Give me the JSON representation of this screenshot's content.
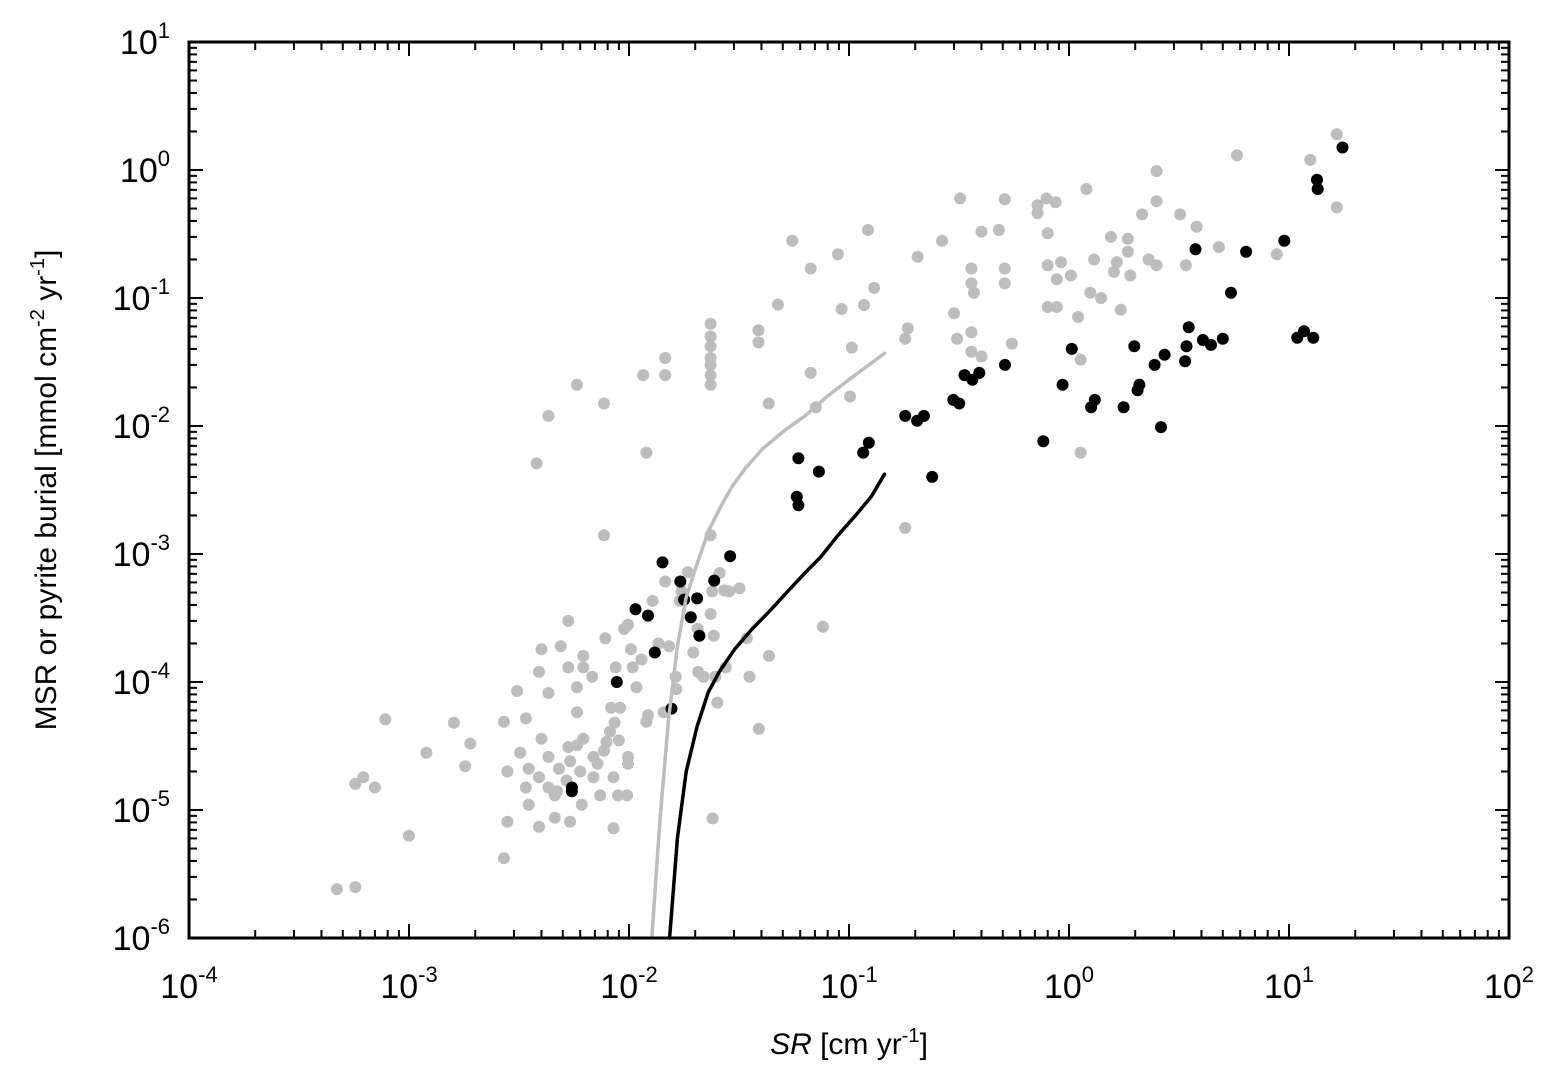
{
  "chart_data": {
    "type": "scatter",
    "title": "",
    "xlabel_italic": "SR",
    "xlabel_rest": " [cm yr",
    "xlabel_sup": "-1",
    "xlabel_end": "]",
    "ylabel_part1": "MSR or pyrite burial [mmol cm",
    "ylabel_sup1": "-2",
    "ylabel_part2": " yr",
    "ylabel_sup2": "-1",
    "ylabel_end": "]",
    "x_scale": "log",
    "y_scale": "log",
    "xlim": [
      0.0001,
      100
    ],
    "ylim": [
      1e-06,
      10
    ],
    "x_ticks": [
      {
        "base": "10",
        "exp": "-4"
      },
      {
        "base": "10",
        "exp": "-3"
      },
      {
        "base": "10",
        "exp": "-2"
      },
      {
        "base": "10",
        "exp": "-1"
      },
      {
        "base": "10",
        "exp": "0"
      },
      {
        "base": "10",
        "exp": "1"
      },
      {
        "base": "10",
        "exp": "2"
      }
    ],
    "y_ticks": [
      {
        "base": "10",
        "exp": "-6"
      },
      {
        "base": "10",
        "exp": "-5"
      },
      {
        "base": "10",
        "exp": "-4"
      },
      {
        "base": "10",
        "exp": "-3"
      },
      {
        "base": "10",
        "exp": "-2"
      },
      {
        "base": "10",
        "exp": "-1"
      },
      {
        "base": "10",
        "exp": "0"
      },
      {
        "base": "10",
        "exp": "1"
      }
    ],
    "grid": false,
    "series": [
      {
        "kind": "points",
        "color": "#bdbdbd",
        "points": [
          [
            0.00047,
            2.4e-06
          ],
          [
            0.00057,
            2.5e-06
          ],
          [
            0.00057,
            1.6e-05
          ],
          [
            0.00062,
            1.8e-05
          ],
          [
            0.0007,
            1.5e-05
          ],
          [
            0.00078,
            5.1e-05
          ],
          [
            0.001,
            6.3e-06
          ],
          [
            0.0012,
            2.8e-05
          ],
          [
            0.0016,
            4.8e-05
          ],
          [
            0.0018,
            2.2e-05
          ],
          [
            0.0019,
            3.3e-05
          ],
          [
            0.0027,
            4.2e-06
          ],
          [
            0.0028,
            8.1e-06
          ],
          [
            0.0028,
            2e-05
          ],
          [
            0.0027,
            4.9e-05
          ],
          [
            0.0031,
            8.5e-05
          ],
          [
            0.0032,
            2.8e-05
          ],
          [
            0.0034,
            5.2e-05
          ],
          [
            0.0035,
            2.1e-05
          ],
          [
            0.0034,
            1.5e-05
          ],
          [
            0.0035,
            1.1e-05
          ],
          [
            0.0039,
            7.4e-06
          ],
          [
            0.0039,
            1.8e-05
          ],
          [
            0.004,
            3.6e-05
          ],
          [
            0.0039,
            0.00012
          ],
          [
            0.004,
            0.00018
          ],
          [
            0.0043,
            8.2e-05
          ],
          [
            0.0043,
            2.6e-05
          ],
          [
            0.0043,
            1.5e-05
          ],
          [
            0.0046,
            1.3e-05
          ],
          [
            0.0046,
            8.7e-06
          ],
          [
            0.0047,
            1.4e-05
          ],
          [
            0.0048,
            2.1e-05
          ],
          [
            0.0049,
            0.00019
          ],
          [
            0.0052,
            1.7e-05
          ],
          [
            0.0053,
            3.1e-05
          ],
          [
            0.0054,
            2.4e-05
          ],
          [
            0.0053,
            0.00013
          ],
          [
            0.0053,
            0.0003
          ],
          [
            0.0054,
            8.1e-06
          ],
          [
            0.0058,
            3.2e-05
          ],
          [
            0.0058,
            9.1e-05
          ],
          [
            0.0058,
            5.8e-05
          ],
          [
            0.006,
            2e-05
          ],
          [
            0.0061,
            1.1e-05
          ],
          [
            0.0062,
            3.6e-05
          ],
          [
            0.0062,
            0.00013
          ],
          [
            0.0062,
            0.00016
          ],
          [
            0.0068,
            0.00011
          ],
          [
            0.0069,
            1.8e-05
          ],
          [
            0.0069,
            2.6e-05
          ],
          [
            0.0072,
            2.3e-05
          ],
          [
            0.0074,
            1.3e-05
          ],
          [
            0.0077,
            2.9e-05
          ],
          [
            0.0078,
            0.00022
          ],
          [
            0.0079,
            3.4e-05
          ],
          [
            0.0083,
            6.3e-05
          ],
          [
            0.0082,
            4.1e-05
          ],
          [
            0.0086,
            4.8e-05
          ],
          [
            0.0085,
            7.2e-06
          ],
          [
            0.0085,
            1.8e-05
          ],
          [
            0.0087,
            0.00013
          ],
          [
            0.0089,
            1.3e-05
          ],
          [
            0.009,
            3.5e-05
          ],
          [
            0.0091,
            6.3e-05
          ],
          [
            0.0095,
            0.00026
          ],
          [
            0.0098,
            1.3e-05
          ],
          [
            0.0099,
            2.6e-05
          ],
          [
            0.0099,
            2.3e-05
          ],
          [
            0.0099,
            0.00028
          ],
          [
            0.0102,
            0.00018
          ],
          [
            0.0104,
            0.00013
          ],
          [
            0.0108,
            9.1e-05
          ],
          [
            0.0114,
            0.00015
          ],
          [
            0.012,
            4.9e-05
          ],
          [
            0.0122,
            5.5e-05
          ],
          [
            0.0128,
            0.00043
          ],
          [
            0.0136,
            0.0002
          ],
          [
            0.0144,
            5.8e-05
          ],
          [
            0.0146,
            0.00061
          ],
          [
            0.0152,
            0.00019
          ],
          [
            0.0163,
            0.00011
          ],
          [
            0.0164,
            8.8e-05
          ],
          [
            0.017,
            0.00043
          ],
          [
            0.0173,
            0.00051
          ],
          [
            0.0185,
            0.00072
          ],
          [
            0.0196,
            0.00017
          ],
          [
            0.0205,
            0.00026
          ],
          [
            0.0206,
            0.00012
          ],
          [
            0.0218,
            0.00011
          ],
          [
            0.0235,
            0.0014
          ],
          [
            0.0235,
            0.00034
          ],
          [
            0.0239,
            0.00051
          ],
          [
            0.0243,
            0.00023
          ],
          [
            0.0247,
            0.00011
          ],
          [
            0.0252,
            6.9e-05
          ],
          [
            0.0258,
            0.00071
          ],
          [
            0.0271,
            0.00052
          ],
          [
            0.0275,
            0.00013
          ],
          [
            0.0285,
            0.00051
          ],
          [
            0.0318,
            0.00054
          ],
          [
            0.0343,
            0.00022
          ],
          [
            0.0353,
            0.00011
          ],
          [
            0.0389,
            4.3e-05
          ],
          [
            0.0433,
            0.00016
          ],
          [
            0.0761,
            0.00027
          ],
          [
            0.024,
            8.6e-06
          ],
          [
            0.0038,
            0.0051
          ],
          [
            0.0043,
            0.012
          ],
          [
            0.0058,
            0.021
          ],
          [
            0.0077,
            0.015
          ],
          [
            0.0077,
            0.0014
          ],
          [
            0.0116,
            0.025
          ],
          [
            0.012,
            0.0062
          ],
          [
            0.0146,
            0.034
          ],
          [
            0.0146,
            0.025
          ],
          [
            0.0235,
            0.063
          ],
          [
            0.0235,
            0.05
          ],
          [
            0.0235,
            0.042
          ],
          [
            0.0235,
            0.034
          ],
          [
            0.0235,
            0.03
          ],
          [
            0.0235,
            0.025
          ],
          [
            0.0235,
            0.021
          ],
          [
            0.0388,
            0.056
          ],
          [
            0.0388,
            0.045
          ],
          [
            0.0432,
            0.015
          ],
          [
            0.0475,
            0.089
          ],
          [
            0.0552,
            0.28
          ],
          [
            0.067,
            0.17
          ],
          [
            0.067,
            0.026
          ],
          [
            0.0707,
            0.014
          ],
          [
            0.089,
            0.22
          ],
          [
            0.0925,
            0.082
          ],
          [
            0.101,
            0.017
          ],
          [
            0.103,
            0.041
          ],
          [
            0.117,
            0.088
          ],
          [
            0.122,
            0.34
          ],
          [
            0.13,
            0.12
          ],
          [
            0.185,
            0.058
          ],
          [
            0.18,
            0.048
          ],
          [
            0.18,
            0.0016
          ],
          [
            0.205,
            0.21
          ],
          [
            0.265,
            0.28
          ],
          [
            0.3,
            0.076
          ],
          [
            0.31,
            0.048
          ],
          [
            0.32,
            0.6
          ],
          [
            0.36,
            0.17
          ],
          [
            0.36,
            0.13
          ],
          [
            0.36,
            0.054
          ],
          [
            0.36,
            0.038
          ],
          [
            0.37,
            0.11
          ],
          [
            0.4,
            0.33
          ],
          [
            0.4,
            0.035
          ],
          [
            0.48,
            0.34
          ],
          [
            0.51,
            0.59
          ],
          [
            0.51,
            0.17
          ],
          [
            0.51,
            0.13
          ],
          [
            0.55,
            0.044
          ],
          [
            0.72,
            0.53
          ],
          [
            0.72,
            0.46
          ],
          [
            0.79,
            0.6
          ],
          [
            0.8,
            0.32
          ],
          [
            0.8,
            0.18
          ],
          [
            0.8,
            0.085
          ],
          [
            0.87,
            0.56
          ],
          [
            0.88,
            0.14
          ],
          [
            0.88,
            0.085
          ],
          [
            0.92,
            0.19
          ],
          [
            1.02,
            0.15
          ],
          [
            1.1,
            0.071
          ],
          [
            1.13,
            0.033
          ],
          [
            1.13,
            0.0062
          ],
          [
            1.2,
            0.71
          ],
          [
            1.25,
            0.11
          ],
          [
            1.3,
            0.2
          ],
          [
            1.4,
            0.1
          ],
          [
            1.55,
            0.3
          ],
          [
            1.6,
            0.16
          ],
          [
            1.65,
            0.19
          ],
          [
            1.72,
            0.081
          ],
          [
            1.85,
            0.29
          ],
          [
            1.85,
            0.23
          ],
          [
            1.9,
            0.15
          ],
          [
            2.15,
            0.45
          ],
          [
            2.3,
            0.2
          ],
          [
            2.5,
            0.98
          ],
          [
            2.5,
            0.57
          ],
          [
            2.5,
            0.18
          ],
          [
            3.2,
            0.45
          ],
          [
            3.4,
            0.18
          ],
          [
            3.8,
            0.36
          ],
          [
            4.8,
            0.25
          ],
          [
            5.8,
            1.3
          ],
          [
            8.8,
            0.22
          ],
          [
            12.5,
            1.2
          ],
          [
            16.5,
            1.9
          ],
          [
            16.5,
            0.51
          ]
        ]
      },
      {
        "kind": "points",
        "color": "#000000",
        "points": [
          [
            0.0055,
            1.5e-05
          ],
          [
            0.0055,
            1.4e-05
          ],
          [
            0.0088,
            0.0001
          ],
          [
            0.0107,
            0.00037
          ],
          [
            0.0122,
            0.00033
          ],
          [
            0.0131,
            0.00017
          ],
          [
            0.0142,
            0.00086
          ],
          [
            0.0156,
            6.2e-05
          ],
          [
            0.0171,
            0.00061
          ],
          [
            0.0178,
            0.00044
          ],
          [
            0.0191,
            0.00032
          ],
          [
            0.0204,
            0.00045
          ],
          [
            0.0209,
            0.00023
          ],
          [
            0.0244,
            0.00062
          ],
          [
            0.0288,
            0.00096
          ],
          [
            0.0589,
            0.0056
          ],
          [
            0.0579,
            0.0028
          ],
          [
            0.0589,
            0.0024
          ],
          [
            0.073,
            0.0044
          ],
          [
            0.116,
            0.0062
          ],
          [
            0.123,
            0.0074
          ],
          [
            0.18,
            0.012
          ],
          [
            0.204,
            0.011
          ],
          [
            0.219,
            0.012
          ],
          [
            0.239,
            0.004
          ],
          [
            0.298,
            0.016
          ],
          [
            0.317,
            0.015
          ],
          [
            0.335,
            0.025
          ],
          [
            0.364,
            0.023
          ],
          [
            0.391,
            0.026
          ],
          [
            0.512,
            0.03
          ],
          [
            0.764,
            0.0076
          ],
          [
            0.935,
            0.021
          ],
          [
            1.03,
            0.04
          ],
          [
            1.26,
            0.014
          ],
          [
            1.31,
            0.016
          ],
          [
            1.77,
            0.014
          ],
          [
            1.98,
            0.042
          ],
          [
            2.05,
            0.019
          ],
          [
            2.09,
            0.021
          ],
          [
            2.45,
            0.03
          ],
          [
            2.62,
            0.0098
          ],
          [
            2.72,
            0.036
          ],
          [
            3.37,
            0.032
          ],
          [
            3.42,
            0.042
          ],
          [
            3.5,
            0.059
          ],
          [
            3.76,
            0.24
          ],
          [
            4.06,
            0.047
          ],
          [
            4.42,
            0.043
          ],
          [
            5.0,
            0.048
          ],
          [
            5.45,
            0.11
          ],
          [
            6.38,
            0.23
          ],
          [
            9.52,
            0.28
          ],
          [
            10.9,
            0.049
          ],
          [
            11.7,
            0.055
          ],
          [
            12.9,
            0.049
          ],
          [
            13.4,
            0.84
          ],
          [
            13.5,
            0.71
          ],
          [
            17.5,
            1.5
          ]
        ]
      },
      {
        "kind": "line",
        "color": "#bdbdbd",
        "points": [
          [
            0.0127,
            1e-06
          ],
          [
            0.0138,
            8e-06
          ],
          [
            0.0151,
            5e-05
          ],
          [
            0.0166,
            0.00019
          ],
          [
            0.0182,
            0.00046
          ],
          [
            0.0204,
            0.00084
          ],
          [
            0.0229,
            0.0015
          ],
          [
            0.0263,
            0.0024
          ],
          [
            0.0295,
            0.0034
          ],
          [
            0.0339,
            0.0047
          ],
          [
            0.0407,
            0.0067
          ],
          [
            0.0513,
            0.0093
          ],
          [
            0.063,
            0.012
          ],
          [
            0.0794,
            0.017
          ],
          [
            0.1,
            0.023
          ],
          [
            0.145,
            0.037
          ]
        ]
      },
      {
        "kind": "line",
        "color": "#000000",
        "points": [
          [
            0.0153,
            1e-06
          ],
          [
            0.0166,
            6e-06
          ],
          [
            0.0182,
            2e-05
          ],
          [
            0.0204,
            4.5e-05
          ],
          [
            0.0229,
            8.3e-05
          ],
          [
            0.0257,
            0.00012
          ],
          [
            0.0302,
            0.00018
          ],
          [
            0.0363,
            0.00026
          ],
          [
            0.0437,
            0.00036
          ],
          [
            0.0537,
            0.00053
          ],
          [
            0.063,
            0.00071
          ],
          [
            0.0741,
            0.00094
          ],
          [
            0.0891,
            0.0014
          ],
          [
            0.107,
            0.002
          ],
          [
            0.126,
            0.0028
          ],
          [
            0.145,
            0.0042
          ]
        ]
      }
    ]
  }
}
